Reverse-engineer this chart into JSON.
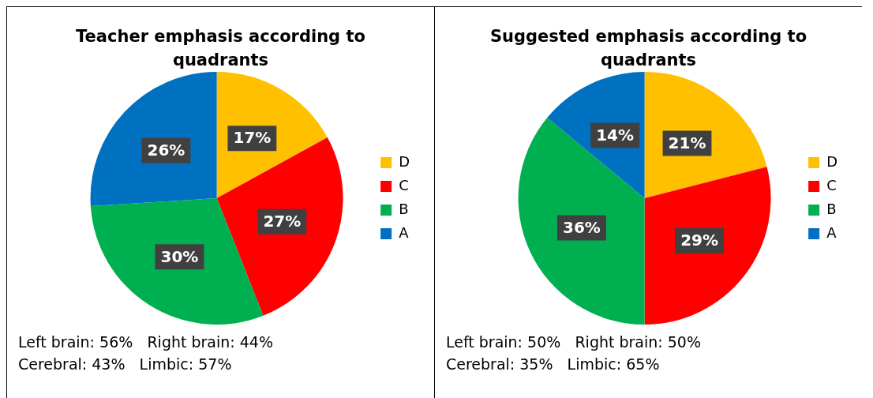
{
  "chart_data": [
    {
      "type": "pie",
      "title": "Teacher emphasis according to quadrants",
      "categories": [
        "D",
        "C",
        "B",
        "A"
      ],
      "values": [
        17,
        27,
        30,
        26
      ],
      "colors": [
        "#ffc000",
        "#ff0000",
        "#00b050",
        "#0070c0"
      ],
      "value_labels": [
        "17%",
        "27%",
        "30%",
        "26%"
      ],
      "legend": "right",
      "annotations": [
        "Left brain: 56%   Right brain: 44%",
        "Cerebral: 43%   Limbic: 57%"
      ]
    },
    {
      "type": "pie",
      "title": "Suggested emphasis according to quadrants",
      "categories": [
        "D",
        "C",
        "B",
        "A"
      ],
      "values": [
        21,
        29,
        36,
        14
      ],
      "colors": [
        "#ffc000",
        "#ff0000",
        "#00b050",
        "#0070c0"
      ],
      "value_labels": [
        "21%",
        "29%",
        "36%",
        "14%"
      ],
      "legend": "right",
      "annotations": [
        "Left brain: 50%   Right brain: 50%",
        "Cerebral: 35%   Limbic: 65%"
      ]
    }
  ]
}
